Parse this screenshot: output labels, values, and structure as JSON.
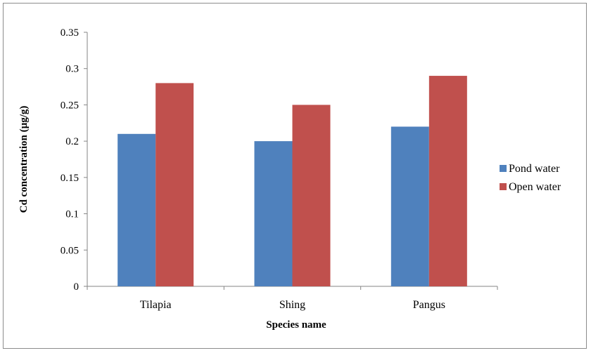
{
  "chart_data": {
    "type": "bar",
    "categories": [
      "Tilapia",
      "Shing",
      "Pangus"
    ],
    "series": [
      {
        "name": "Pond water",
        "values": [
          0.21,
          0.2,
          0.22
        ],
        "color": "#4f81bd"
      },
      {
        "name": "Open water",
        "values": [
          0.28,
          0.25,
          0.29
        ],
        "color": "#c0504d"
      }
    ],
    "xlabel": "Species name",
    "ylabel": "Cd concentration (µg/g)",
    "ylim": [
      0,
      0.35
    ],
    "yticks": [
      "0",
      "0.05",
      "0.1",
      "0.15",
      "0.2",
      "0.25",
      "0.3",
      "0.35"
    ],
    "grid": false,
    "legend_position": "right"
  }
}
